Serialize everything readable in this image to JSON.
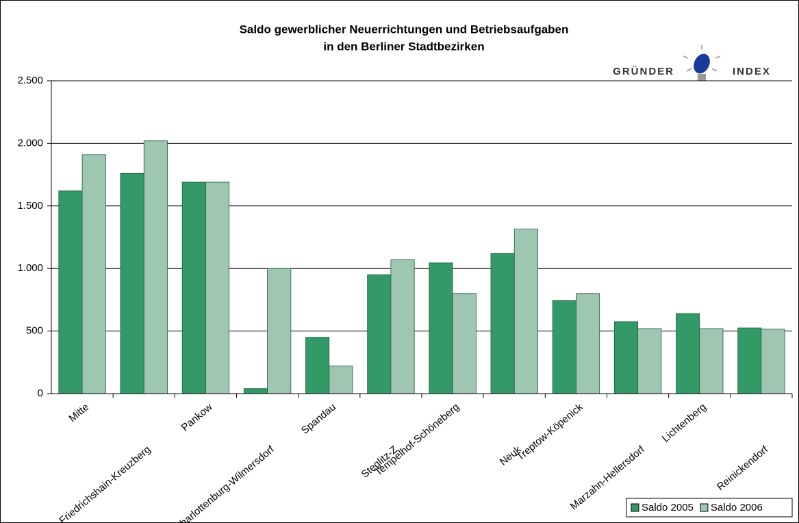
{
  "chart_data": {
    "type": "bar",
    "title": "Saldo gewerblicher Neuerrichtungen und Betriebsaufgaben",
    "subtitle": "in den Berliner Stadtbezirken",
    "logo": [
      "GRÜNDER",
      "INDEX"
    ],
    "categories": [
      "Mitte",
      "Friedrichshain-Kreuzberg",
      "Pankow",
      "Charlottenburg-Wilmersdorf",
      "Spandau",
      "Steglitz-Z",
      "Tempelhof-Schöneberg",
      "Neuk",
      "Treptow-Köpenick",
      "Marzahn-Hellersdorf",
      "Lichtenberg",
      "Reinickendorf"
    ],
    "series": [
      {
        "name": "Saldo 2005",
        "color": "#339966",
        "values": [
          1620,
          1760,
          1690,
          40,
          450,
          950,
          1045,
          1120,
          745,
          575,
          640,
          525
        ]
      },
      {
        "name": "Saldo 2006",
        "color": "#9fc6b0",
        "values": [
          1910,
          2020,
          1690,
          1000,
          220,
          1070,
          800,
          1315,
          800,
          520,
          520,
          515
        ]
      }
    ],
    "ylim": [
      0,
      2500
    ],
    "yticks": [
      0,
      {
        "value": 500,
        "label": "500"
      },
      {
        "value": 1000,
        "label": "1.000"
      },
      {
        "value": 1500,
        "label": "1.500"
      },
      {
        "value": 2000,
        "label": "2.000"
      },
      {
        "value": 2500,
        "label": "2.500"
      }
    ],
    "grid": true,
    "legend": "bottom-right"
  }
}
